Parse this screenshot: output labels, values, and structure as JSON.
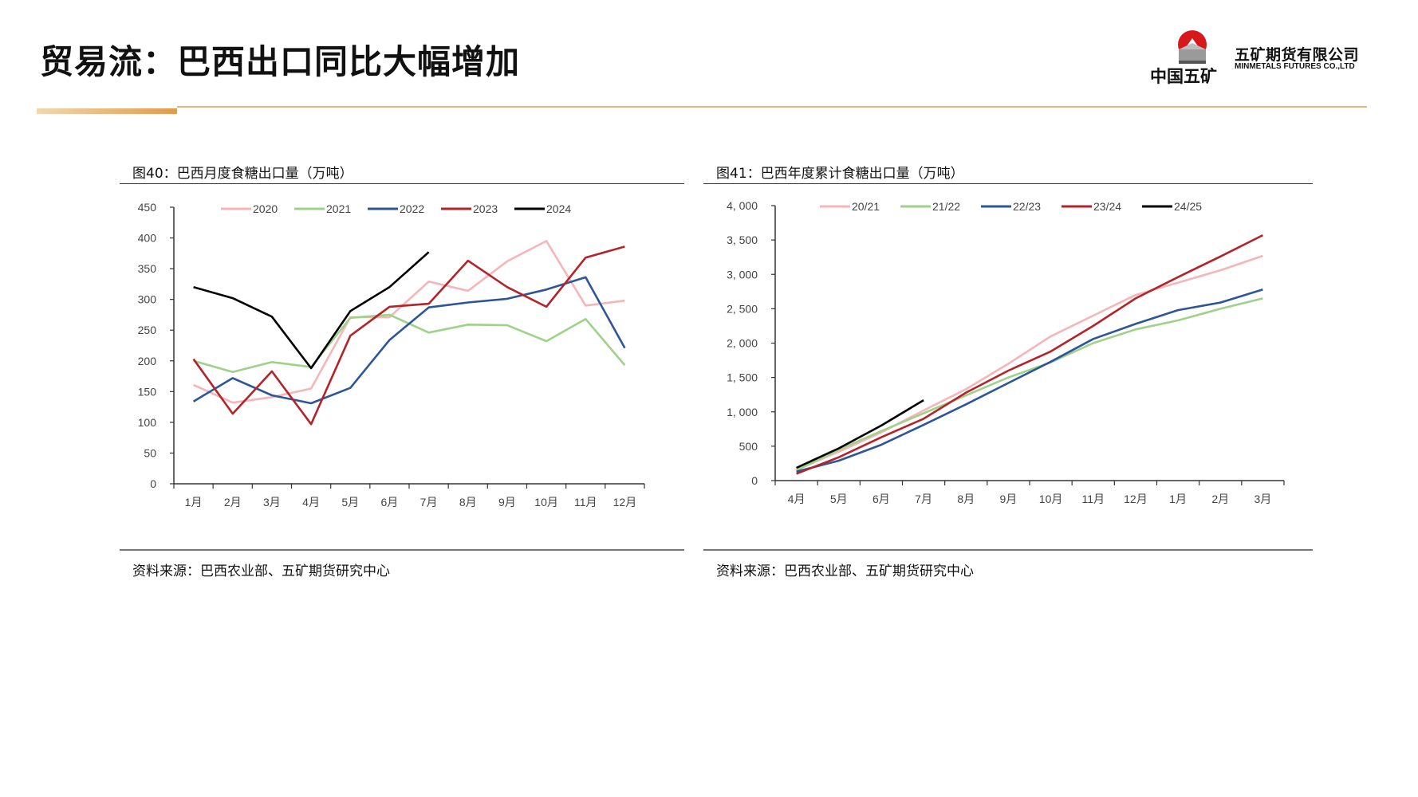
{
  "page": {
    "title": "贸易流：巴西出口同比大幅增加",
    "logo": {
      "group_name": "中国五矿",
      "company_cn": "五矿期货有限公司",
      "company_en": "MINMETALS FUTURES CO.,LTD",
      "emblem_text": "MINMETALS"
    },
    "colors": {
      "accent_orange": "#e39a4a",
      "accent_light": "#f2d7b0",
      "logo_red": "#d7191c"
    }
  },
  "charts": [
    {
      "figure_title": "图40：巴西月度食糖出口量（万吨）",
      "source": "资料来源：巴西农业部、五矿期货研究中心"
    },
    {
      "figure_title": "图41：巴西年度累计食糖出口量（万吨）",
      "source": "资料来源：巴西农业部、五矿期货研究中心"
    }
  ],
  "chart_data": [
    {
      "type": "line",
      "title": "图40：巴西月度食糖出口量（万吨）",
      "xlabel": "",
      "ylabel": "万吨",
      "categories": [
        "1月",
        "2月",
        "3月",
        "4月",
        "5月",
        "6月",
        "7月",
        "8月",
        "9月",
        "10月",
        "11月",
        "12月"
      ],
      "ylim": [
        0,
        450
      ],
      "yticks": [
        0,
        50,
        100,
        150,
        200,
        250,
        300,
        350,
        400,
        450
      ],
      "ytick_labels": [
        "0",
        "50",
        "100",
        "150",
        "200",
        "250",
        "300",
        "350",
        "400",
        "450"
      ],
      "grid": false,
      "legend": "top",
      "series": [
        {
          "name": "2020",
          "color": "#f4b6b8",
          "values": [
            161,
            132,
            141,
            155,
            271,
            271,
            329,
            314,
            362,
            395,
            290,
            298
          ]
        },
        {
          "name": "2021",
          "color": "#9fd18a",
          "values": [
            200,
            182,
            198,
            190,
            270,
            275,
            246,
            259,
            258,
            232,
            268,
            193
          ]
        },
        {
          "name": "2022",
          "color": "#2e5597",
          "values": [
            134,
            172,
            144,
            131,
            156,
            234,
            287,
            295,
            301,
            316,
            336,
            221
          ]
        },
        {
          "name": "2023",
          "color": "#b3242a",
          "values": [
            203,
            114,
            183,
            97,
            241,
            288,
            293,
            363,
            320,
            288,
            368,
            386
          ]
        },
        {
          "name": "2024",
          "color": "#000000",
          "values": [
            320,
            302,
            272,
            188,
            281,
            320,
            377,
            null,
            null,
            null,
            null,
            null
          ]
        }
      ]
    },
    {
      "type": "line",
      "title": "图41：巴西年度累计食糖出口量（万吨）",
      "xlabel": "",
      "ylabel": "万吨",
      "categories": [
        "4月",
        "5月",
        "6月",
        "7月",
        "8月",
        "9月",
        "10月",
        "11月",
        "12月",
        "1月",
        "2月",
        "3月"
      ],
      "ylim": [
        0,
        4000
      ],
      "yticks": [
        0,
        500,
        1000,
        1500,
        2000,
        2500,
        3000,
        3500,
        4000
      ],
      "ytick_labels": [
        "0",
        "500",
        "1, 000",
        "1, 500",
        "2, 000",
        "2, 500",
        "3, 000",
        "3, 500",
        "4, 000"
      ],
      "grid": false,
      "legend": "top",
      "series": [
        {
          "name": "20/21",
          "color": "#f4b6b8",
          "values": [
            155,
            420,
            700,
            1020,
            1330,
            1700,
            2100,
            2400,
            2700,
            2880,
            3060,
            3270
          ]
        },
        {
          "name": "21/22",
          "color": "#9fd18a",
          "values": [
            150,
            450,
            720,
            980,
            1240,
            1500,
            1720,
            2000,
            2200,
            2330,
            2500,
            2650
          ]
        },
        {
          "name": "22/23",
          "color": "#2e5597",
          "values": [
            130,
            290,
            520,
            810,
            1110,
            1420,
            1730,
            2060,
            2280,
            2480,
            2590,
            2780
          ]
        },
        {
          "name": "23/24",
          "color": "#b3242a",
          "values": [
            100,
            340,
            630,
            900,
            1280,
            1600,
            1880,
            2250,
            2650,
            2960,
            3260,
            3570
          ]
        },
        {
          "name": "24/25",
          "color": "#000000",
          "values": [
            185,
            470,
            800,
            1170,
            null,
            null,
            null,
            null,
            null,
            null,
            null,
            null
          ]
        }
      ]
    }
  ]
}
